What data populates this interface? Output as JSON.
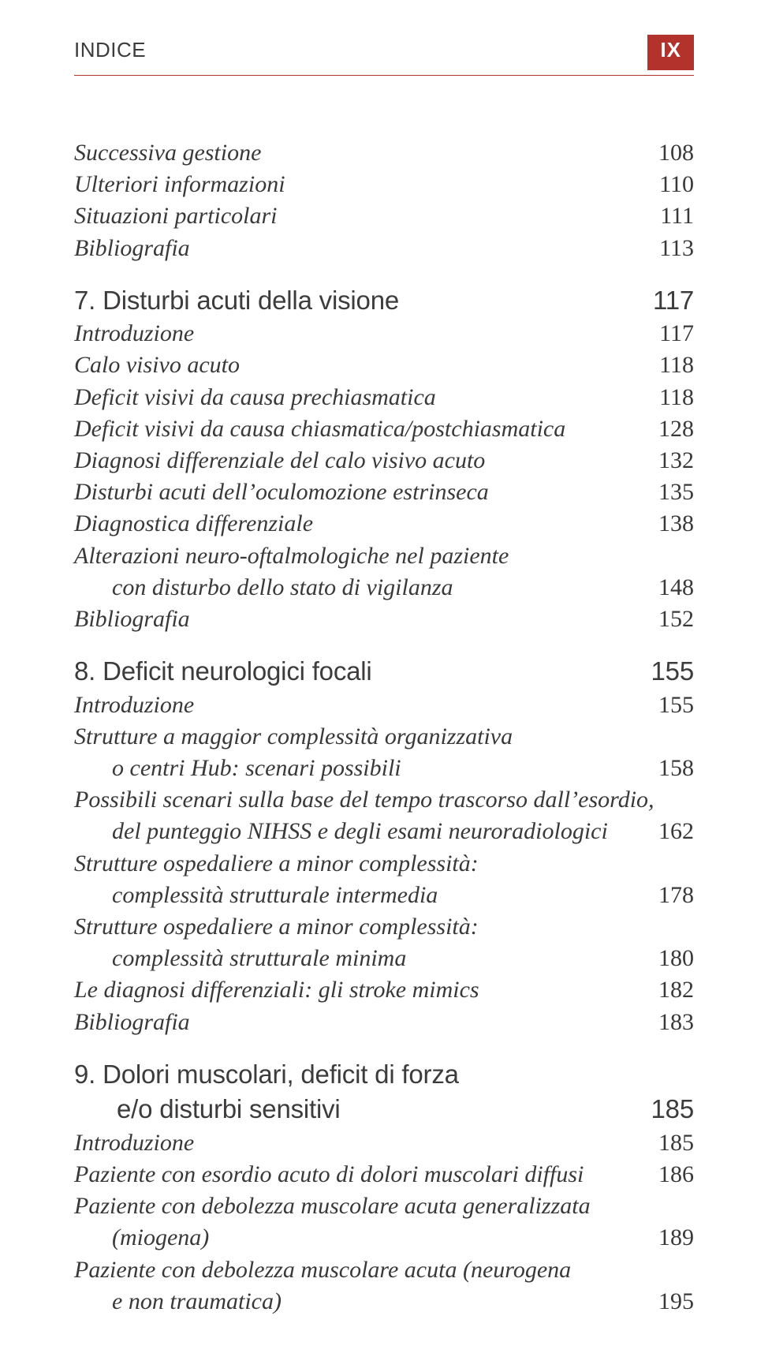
{
  "header": {
    "title": "INDICE",
    "page_roman": "IX"
  },
  "preamble": [
    {
      "label": "Successiva gestione",
      "page": "108"
    },
    {
      "label": "Ulteriori informazioni",
      "page": "110"
    },
    {
      "label": "Situazioni particolari",
      "page": "111"
    },
    {
      "label": "Bibliografia",
      "page": "113"
    }
  ],
  "ch7": {
    "num": "7.",
    "title": "Disturbi acuti della visione",
    "page": "117",
    "entries": [
      {
        "label": "Introduzione",
        "page": "117"
      },
      {
        "label": "Calo visivo acuto",
        "page": "118"
      },
      {
        "label": "Deficit visivi da causa prechiasmatica",
        "page": "118"
      },
      {
        "label": "Deficit visivi da causa chiasmatica/postchiasmatica",
        "page": "128"
      },
      {
        "label": "Diagnosi differenziale del calo visivo acuto",
        "page": "132"
      },
      {
        "label": "Disturbi acuti dell’oculomozione estrinseca",
        "page": "135"
      },
      {
        "label": "Diagnostica differenziale",
        "page": "138"
      },
      {
        "label": "Alterazioni neuro-oftalmologiche nel paziente",
        "page": ""
      },
      {
        "label": "con disturbo dello stato di vigilanza",
        "page": "148",
        "indent": true
      },
      {
        "label": "Bibliografia",
        "page": "152"
      }
    ]
  },
  "ch8": {
    "num": "8.",
    "title": "Deficit neurologici focali",
    "page": "155",
    "entries": [
      {
        "label": "Introduzione",
        "page": "155"
      },
      {
        "label": "Strutture a maggior complessità organizzativa",
        "page": ""
      },
      {
        "label": "o centri Hub: scenari possibili",
        "page": "158",
        "indent": true
      },
      {
        "label": "Possibili scenari sulla base del tempo trascorso dall’esordio,",
        "page": ""
      },
      {
        "label": "del punteggio NIHSS e degli esami neuroradiologici",
        "page": "162",
        "indent": true
      },
      {
        "label": "Strutture ospedaliere a minor complessità:",
        "page": ""
      },
      {
        "label": "complessità strutturale intermedia",
        "page": "178",
        "indent": true
      },
      {
        "label": "Strutture ospedaliere a minor complessità:",
        "page": ""
      },
      {
        "label": "complessità strutturale minima",
        "page": "180",
        "indent": true
      },
      {
        "label": "Le diagnosi differenziali: gli stroke mimics",
        "page": "182"
      },
      {
        "label": "Bibliografia",
        "page": "183"
      }
    ]
  },
  "ch9": {
    "num": "9.",
    "title_line1": "Dolori muscolari, deficit di forza",
    "title_line2": "e/o disturbi sensitivi",
    "page": "185",
    "entries": [
      {
        "label": "Introduzione",
        "page": "185"
      },
      {
        "label": "Paziente con esordio acuto di dolori muscolari diffusi",
        "page": "186"
      },
      {
        "label": "Paziente con debolezza muscolare acuta generalizzata",
        "page": ""
      },
      {
        "label": "(miogena)",
        "page": "189",
        "indent": true
      },
      {
        "label": "Paziente con debolezza muscolare acuta (neurogena",
        "page": ""
      },
      {
        "label": "e non traumatica)",
        "page": "195",
        "indent": true
      }
    ]
  }
}
